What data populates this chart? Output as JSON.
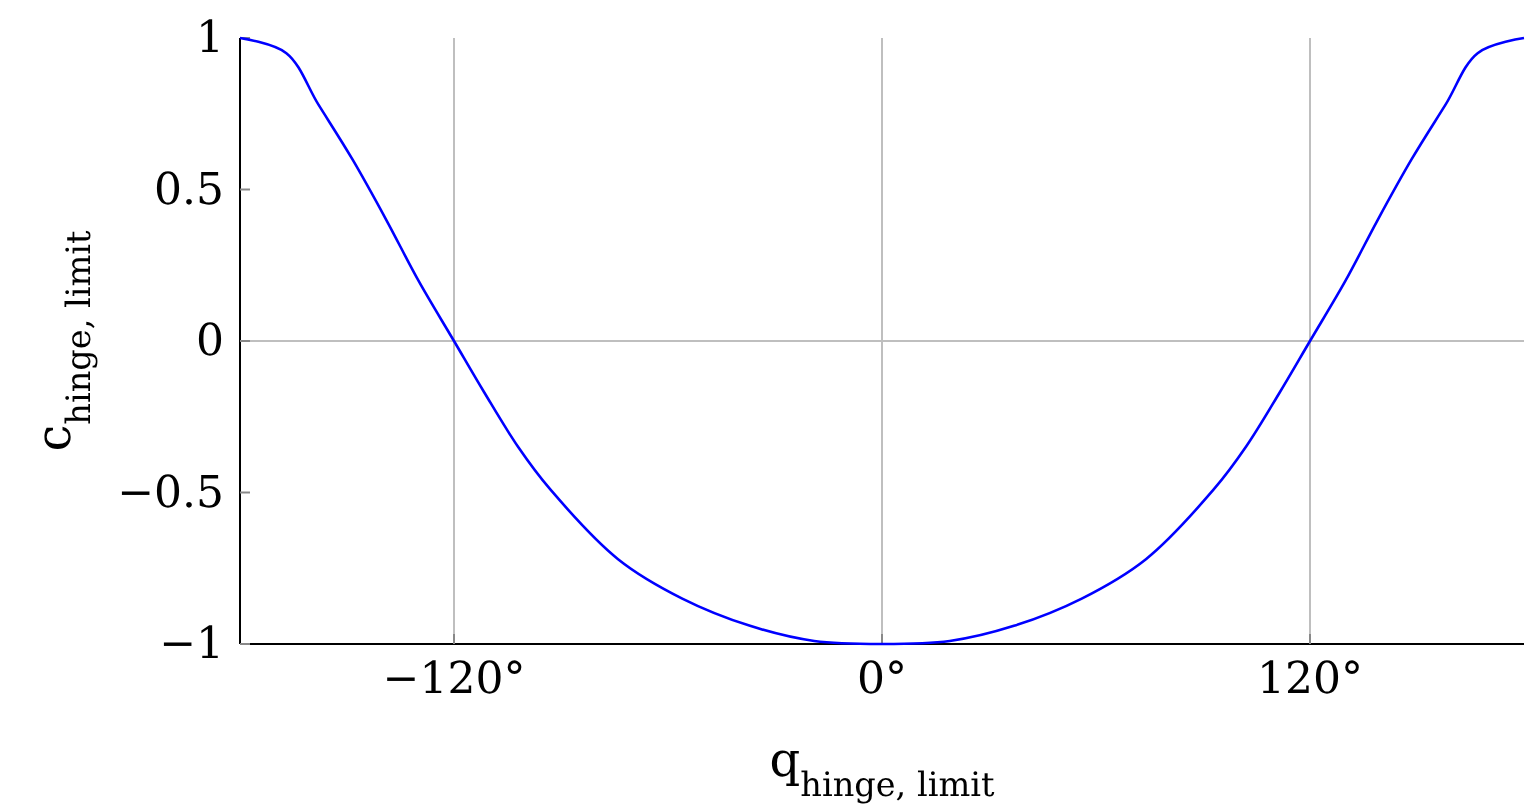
{
  "chart_data": {
    "type": "line",
    "xlabel": "q$_{hinge, limit}$",
    "ylabel": "c$_{hinge, limit}$",
    "x": [
      -180,
      -167,
      -158,
      -148.5,
      -139,
      -130,
      -120,
      -111.5,
      -102,
      -93,
      -74,
      -56,
      -37,
      -19,
      0,
      19,
      37,
      56,
      74,
      93,
      102,
      111.5,
      120,
      130,
      139,
      148.5,
      158,
      167,
      180
    ],
    "series": [
      {
        "color": "#0000ff",
        "values": [
          1,
          0.95,
          0.78,
          0.6,
          0.4,
          0.2,
          0,
          -0.17,
          -0.35,
          -0.49,
          -0.72,
          -0.85,
          -0.94,
          -0.99,
          -1,
          -0.99,
          -0.94,
          -0.85,
          -0.72,
          -0.49,
          -0.35,
          -0.17,
          0,
          0.2,
          0.4,
          0.6,
          0.78,
          0.95,
          1
        ]
      }
    ],
    "xlim": [
      -180,
      180
    ],
    "ylim": [
      -1,
      1
    ],
    "xticks": [
      {
        "value": -120,
        "label": "−120°"
      },
      {
        "value": 0,
        "label": "0°"
      },
      {
        "value": 120,
        "label": "120°"
      }
    ],
    "yticks": [
      {
        "value": -1,
        "label": "−1"
      },
      {
        "value": -0.5,
        "label": "−0.5"
      },
      0,
      0.5,
      1
    ],
    "grid": "x",
    "ref_lines": [
      {
        "axis": "y",
        "value": 0
      }
    ]
  }
}
